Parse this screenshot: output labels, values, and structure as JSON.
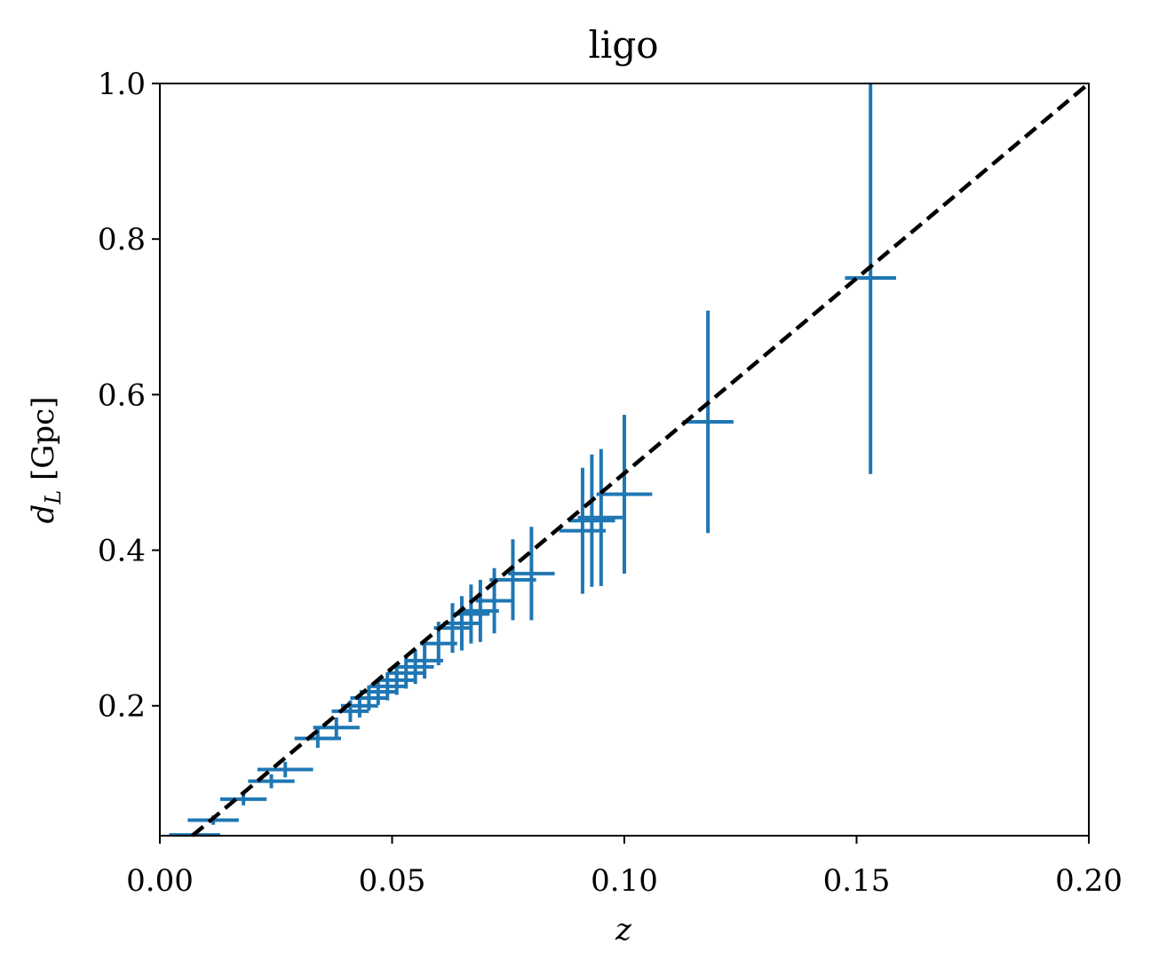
{
  "chart_data": {
    "type": "scatter",
    "title": "ligo",
    "xlabel": "z",
    "ylabel_main": "d",
    "ylabel_sub": "L",
    "ylabel_unit": " [Gpc]",
    "xlim": [
      0.0,
      0.2
    ],
    "ylim": [
      0.033,
      1.0
    ],
    "x_ticks": [
      0.0,
      0.05,
      0.1,
      0.15,
      0.2
    ],
    "x_tick_labels": [
      "0.00",
      "0.05",
      "0.10",
      "0.15",
      "0.20"
    ],
    "y_ticks": [
      0.2,
      0.4,
      0.6,
      0.8,
      1.0
    ],
    "y_tick_labels": [
      "0.2",
      "0.4",
      "0.6",
      "0.8",
      "1.0"
    ],
    "grid": false,
    "series": [
      {
        "kind": "errorbar",
        "color": "#1f77b4",
        "points": [
          {
            "x": 0.0075,
            "y": 0.034,
            "xerr": 0.0055,
            "yerr": 0.004
          },
          {
            "x": 0.0115,
            "y": 0.053,
            "xerr": 0.0055,
            "yerr": 0.006
          },
          {
            "x": 0.018,
            "y": 0.08,
            "xerr": 0.005,
            "yerr": 0.008
          },
          {
            "x": 0.024,
            "y": 0.103,
            "xerr": 0.005,
            "yerr": 0.009
          },
          {
            "x": 0.027,
            "y": 0.118,
            "xerr": 0.006,
            "yerr": 0.01
          },
          {
            "x": 0.034,
            "y": 0.158,
            "xerr": 0.005,
            "yerr": 0.012
          },
          {
            "x": 0.038,
            "y": 0.172,
            "xerr": 0.005,
            "yerr": 0.013
          },
          {
            "x": 0.041,
            "y": 0.193,
            "xerr": 0.004,
            "yerr": 0.014
          },
          {
            "x": 0.043,
            "y": 0.2,
            "xerr": 0.004,
            "yerr": 0.015
          },
          {
            "x": 0.045,
            "y": 0.21,
            "xerr": 0.004,
            "yerr": 0.016
          },
          {
            "x": 0.047,
            "y": 0.218,
            "xerr": 0.004,
            "yerr": 0.017
          },
          {
            "x": 0.049,
            "y": 0.225,
            "xerr": 0.004,
            "yerr": 0.018
          },
          {
            "x": 0.051,
            "y": 0.233,
            "xerr": 0.004,
            "yerr": 0.019
          },
          {
            "x": 0.053,
            "y": 0.242,
            "xerr": 0.004,
            "yerr": 0.02
          },
          {
            "x": 0.055,
            "y": 0.25,
            "xerr": 0.004,
            "yerr": 0.022
          },
          {
            "x": 0.057,
            "y": 0.258,
            "xerr": 0.004,
            "yerr": 0.023
          },
          {
            "x": 0.06,
            "y": 0.28,
            "xerr": 0.004,
            "yerr": 0.028
          },
          {
            "x": 0.063,
            "y": 0.3,
            "xerr": 0.004,
            "yerr": 0.032
          },
          {
            "x": 0.065,
            "y": 0.306,
            "xerr": 0.004,
            "yerr": 0.035
          },
          {
            "x": 0.067,
            "y": 0.318,
            "xerr": 0.004,
            "yerr": 0.038
          },
          {
            "x": 0.069,
            "y": 0.322,
            "xerr": 0.004,
            "yerr": 0.04
          },
          {
            "x": 0.072,
            "y": 0.335,
            "xerr": 0.004,
            "yerr": 0.042
          },
          {
            "x": 0.076,
            "y": 0.362,
            "xerr": 0.005,
            "yerr": 0.052
          },
          {
            "x": 0.08,
            "y": 0.37,
            "xerr": 0.005,
            "yerr": 0.06
          },
          {
            "x": 0.091,
            "y": 0.425,
            "xerr": 0.005,
            "yerr": 0.081
          },
          {
            "x": 0.093,
            "y": 0.438,
            "xerr": 0.005,
            "yerr": 0.085
          },
          {
            "x": 0.095,
            "y": 0.442,
            "xerr": 0.005,
            "yerr": 0.088
          },
          {
            "x": 0.1,
            "y": 0.472,
            "xerr": 0.006,
            "yerr": 0.102
          },
          {
            "x": 0.118,
            "y": 0.565,
            "xerr": 0.0055,
            "yerr": 0.143
          },
          {
            "x": 0.153,
            "y": 0.75,
            "xerr": 0.0055,
            "yerr": 0.252
          }
        ]
      },
      {
        "kind": "line",
        "style": "dashed",
        "color": "#000000",
        "x": [
          0.007,
          0.2
        ],
        "y": [
          0.033,
          1.0
        ]
      }
    ]
  }
}
